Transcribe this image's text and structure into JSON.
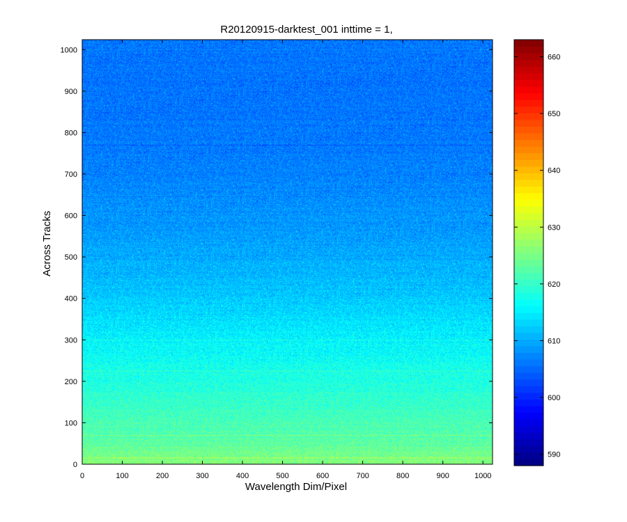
{
  "chart_data": {
    "type": "heatmap",
    "title": "R20120915-darktest_001 inttime = 1,",
    "xlabel": "Wavelength Dim/Pixel",
    "ylabel": "Across Tracks",
    "xlim": [
      0,
      1024
    ],
    "ylim": [
      0,
      1024
    ],
    "x_ticks": [
      0,
      100,
      200,
      300,
      400,
      500,
      600,
      700,
      800,
      900,
      1000
    ],
    "y_ticks": [
      0,
      100,
      200,
      300,
      400,
      500,
      600,
      700,
      800,
      900,
      1000
    ],
    "colorbar": {
      "colormap": "jet",
      "range": [
        588,
        663
      ],
      "ticks": [
        590,
        600,
        610,
        620,
        630,
        640,
        650,
        660
      ]
    },
    "value_profile_by_row": [
      {
        "y": 0,
        "value": 626
      },
      {
        "y": 50,
        "value": 623
      },
      {
        "y": 150,
        "value": 620
      },
      {
        "y": 250,
        "value": 617
      },
      {
        "y": 350,
        "value": 614
      },
      {
        "y": 450,
        "value": 611
      },
      {
        "y": 550,
        "value": 609
      },
      {
        "y": 700,
        "value": 607
      },
      {
        "y": 850,
        "value": 606
      },
      {
        "y": 1024,
        "value": 606
      }
    ],
    "noise_amplitude": 4,
    "row_features": [
      {
        "y": 770,
        "offset": -3
      },
      {
        "y": 645,
        "offset": -2
      },
      {
        "y": 1000,
        "offset": 2
      },
      {
        "y": 300,
        "offset": 2
      },
      {
        "y": 225,
        "offset": 2
      },
      {
        "y": 70,
        "offset": 3
      },
      {
        "y": 15,
        "offset": 2
      }
    ]
  }
}
